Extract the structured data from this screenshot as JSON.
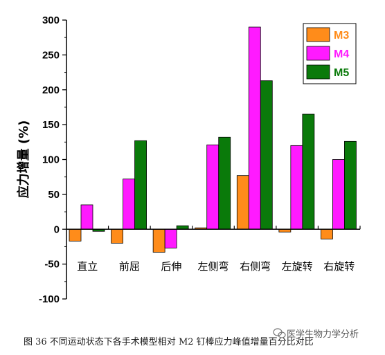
{
  "chart_data": {
    "type": "bar",
    "ylabel": "应力增量 (%)",
    "ylim": [
      -100,
      300
    ],
    "yticks": [
      -100,
      -50,
      0,
      50,
      100,
      150,
      200,
      250,
      300
    ],
    "categories": [
      "直立",
      "前屈",
      "后伸",
      "左侧弯",
      "右侧弯",
      "左旋转",
      "右旋转"
    ],
    "series": [
      {
        "name": "M3",
        "color": "#ff8c1a",
        "values": [
          -17,
          -20,
          -33,
          2,
          77,
          -4,
          -14
        ]
      },
      {
        "name": "M4",
        "color": "#ff1aff",
        "values": [
          35,
          72,
          -27,
          121,
          290,
          120,
          100
        ]
      },
      {
        "name": "M5",
        "color": "#0a7a0a",
        "values": [
          -3,
          127,
          5,
          132,
          213,
          165,
          126
        ]
      }
    ],
    "legend": {
      "position": "top-right"
    },
    "grid": false
  },
  "caption": "图 36 不同运动状态下各手术模型相对 M2 钉棒应力峰值增量百分比对比",
  "watermark": "医学生物力学分析",
  "watermark_icon": "wechat-icon"
}
